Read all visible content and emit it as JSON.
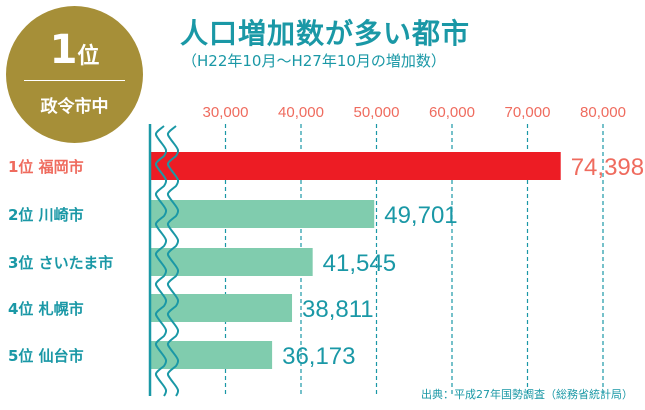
{
  "badge": {
    "rank_num": "1",
    "rank_suffix": "位",
    "category": "政令市中"
  },
  "title": "人口増加数が多い都市",
  "subtitle": "（H22年10月～H27年10月の増加数）",
  "source": "出典：平成27年国勢調査（総務省統計局）",
  "colors": {
    "highlight": "#ed1c24",
    "bar": "#80ccae",
    "accent": "#1a98a6",
    "label_highlight": "#ef6b5e"
  },
  "chart_data": {
    "type": "bar",
    "orientation": "horizontal",
    "categories": [
      "1位 福岡市",
      "2位 川崎市",
      "3位 さいたま市",
      "4位 札幌市",
      "5位 仙台市"
    ],
    "values": [
      74398,
      49701,
      41545,
      38811,
      36173
    ],
    "value_labels": [
      "74,398",
      "49,701",
      "41,545",
      "38,811",
      "36,173"
    ],
    "xlim": [
      20000,
      80000
    ],
    "axis_break": true,
    "xticks": [
      30000,
      40000,
      50000,
      60000,
      70000,
      80000
    ],
    "xtick_labels": [
      "30,000",
      "40,000",
      "50,000",
      "60,000",
      "70,000",
      "80,000"
    ],
    "grid": "vertical-dashed"
  }
}
